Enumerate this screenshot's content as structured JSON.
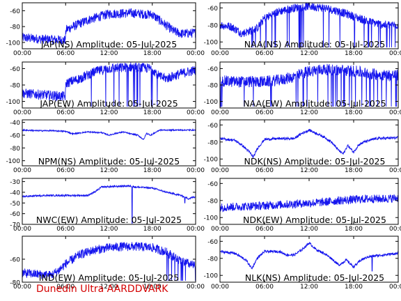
{
  "footer_text": "Dunedin Ultra AARDDVARK",
  "colors": {
    "trace": "#1515ee",
    "axis": "#000000",
    "footer": "#d40000"
  },
  "chart_data": [
    {
      "type": "line",
      "title": "JAP(NS) Amplitude: 05-Jul-2025",
      "xlim": [
        0,
        24
      ],
      "ylim": [
        -108,
        -50
      ],
      "yticks": [
        -100,
        -80,
        -60
      ],
      "xticks": [
        "00:00",
        "06:00",
        "12:00",
        "18:00",
        "00:00"
      ],
      "series": [
        {
          "x": [
            0,
            3,
            5.95,
            6.05,
            9,
            12,
            15,
            18,
            20,
            21,
            22,
            24
          ],
          "y": [
            -94,
            -96,
            -97,
            -84,
            -72,
            -64,
            -63,
            -65,
            -79,
            -86,
            -89,
            -88
          ],
          "noise": 6
        }
      ]
    },
    {
      "type": "line",
      "title": "NAA(NS) Amplitude: 05-Jul-2025",
      "xlim": [
        0,
        24
      ],
      "ylim": [
        -108,
        -54
      ],
      "yticks": [
        -100,
        -80,
        -60
      ],
      "xticks": [
        "00:00",
        "06:00",
        "12:00",
        "18:00",
        "00:00"
      ],
      "series": [
        {
          "x": [
            0,
            1.5,
            3,
            5,
            6,
            8,
            10,
            12,
            14,
            16,
            18,
            20,
            22,
            24
          ],
          "y": [
            -80,
            -82,
            -90,
            -84,
            -72,
            -64,
            -60,
            -58,
            -60,
            -64,
            -70,
            -76,
            -80,
            -80
          ],
          "noise": 5,
          "dropouts": [
            3,
            14.5,
            24
          ]
        }
      ]
    },
    {
      "type": "line",
      "title": "JAP(EW) Amplitude: 05-Jul-2025",
      "xlim": [
        0,
        24
      ],
      "ylim": [
        -108,
        -52
      ],
      "yticks": [
        -100,
        -80,
        -60
      ],
      "xticks": [
        "00:00",
        "06:00",
        "12:00",
        "18:00",
        "00:00"
      ],
      "series": [
        {
          "x": [
            0,
            3,
            5.95,
            6.05,
            8,
            10,
            12,
            15,
            18,
            19,
            20,
            22,
            24
          ],
          "y": [
            -90,
            -92,
            -94,
            -78,
            -72,
            -64,
            -60,
            -58,
            -60,
            -70,
            -72,
            -66,
            -62
          ],
          "noise": 6,
          "dropouts": [
            8,
            19
          ]
        }
      ]
    },
    {
      "type": "line",
      "title": "NAA(EW) Amplitude: 05-Jul-2025",
      "xlim": [
        0,
        24
      ],
      "ylim": [
        -108,
        -52
      ],
      "yticks": [
        -100,
        -80,
        -60
      ],
      "xticks": [
        "00:00",
        "06:00",
        "12:00",
        "18:00",
        "00:00"
      ],
      "series": [
        {
          "x": [
            0,
            2,
            4,
            6,
            8,
            10,
            12,
            14,
            16,
            18,
            20,
            22,
            24
          ],
          "y": [
            -75,
            -76,
            -76,
            -76,
            -74,
            -70,
            -63,
            -61,
            -62,
            -63,
            -66,
            -68,
            -68
          ],
          "noise": 7,
          "dropouts": [
            0,
            24
          ]
        }
      ]
    },
    {
      "type": "line",
      "title": "NPM(NS) Amplitude: 05-Jul-2025",
      "xlim": [
        0,
        24
      ],
      "ylim": [
        -108,
        -36
      ],
      "yticks": [
        -100,
        -80,
        -60,
        -40
      ],
      "xticks": [
        "00:00",
        "06:00",
        "12:00",
        "18:00",
        "00:00"
      ],
      "series": [
        {
          "x": [
            0,
            2,
            4,
            6,
            7,
            9,
            11,
            12,
            13,
            14,
            15,
            16,
            16.8,
            17.2,
            17.8,
            19,
            21,
            24
          ],
          "y": [
            -52,
            -53,
            -53,
            -54,
            -58,
            -55,
            -56,
            -60,
            -57,
            -55,
            -58,
            -60,
            -67,
            -57,
            -60,
            -52,
            -52,
            -52
          ],
          "noise": 1
        }
      ]
    },
    {
      "type": "line",
      "title": "NDK(NS) Amplitude: 05-Jul-2025",
      "xlim": [
        0,
        24
      ],
      "ylim": [
        -108,
        -54
      ],
      "yticks": [
        -100,
        -80,
        -60
      ],
      "xticks": [
        "00:00",
        "06:00",
        "12:00",
        "18:00",
        "00:00"
      ],
      "series": [
        {
          "x": [
            0,
            2,
            3,
            4,
            4.5,
            5,
            6,
            8,
            10,
            11,
            12,
            13,
            14,
            15,
            16,
            16.6,
            17.2,
            18,
            18.6,
            19.4,
            21,
            24
          ],
          "y": [
            -76,
            -78,
            -84,
            -92,
            -98,
            -88,
            -77,
            -76,
            -76,
            -70,
            -66,
            -70,
            -74,
            -80,
            -90,
            -94,
            -84,
            -92,
            -84,
            -80,
            -76,
            -75
          ],
          "noise": 1.5
        }
      ]
    },
    {
      "type": "line",
      "title": "NWC(EW) Amplitude: 05-Jul-2025",
      "xlim": [
        0,
        24
      ],
      "ylim": [
        -70,
        -27
      ],
      "yticks": [
        -70,
        -60,
        -50,
        -40,
        -30
      ],
      "xticks": [
        "00:00",
        "06:00",
        "12:00",
        "18:00",
        "00:00"
      ],
      "series": [
        {
          "x": [
            0,
            3,
            6,
            9,
            10,
            11,
            15,
            15.5,
            18,
            20,
            22,
            23,
            24
          ],
          "y": [
            -44,
            -43,
            -43,
            -43,
            -40,
            -35,
            -34,
            -35,
            -36,
            -40,
            -43,
            -46,
            -44
          ],
          "noise": 0.8,
          "spikes": [
            [
              15.2,
              -69
            ],
            [
              22.5,
              -50
            ]
          ]
        }
      ]
    },
    {
      "type": "line",
      "title": "NDK(EW) Amplitude: 05-Jul-2025",
      "xlim": [
        0,
        24
      ],
      "ylim": [
        -108,
        -54
      ],
      "yticks": [
        -100,
        -80,
        -60
      ],
      "xticks": [
        "00:00",
        "06:00",
        "12:00",
        "18:00",
        "00:00"
      ],
      "series": [
        {
          "x": [
            0,
            3,
            6,
            8,
            10,
            12,
            14,
            16,
            18,
            20,
            22,
            24
          ],
          "y": [
            -88,
            -87,
            -86,
            -85,
            -84,
            -83,
            -82,
            -80,
            -79,
            -78,
            -78,
            -77
          ],
          "noise": 5
        }
      ]
    },
    {
      "type": "line",
      "title": "IND(EW) Amplitude: 05-Jul-2025",
      "xlim": [
        0,
        24
      ],
      "ylim": [
        -80,
        -40
      ],
      "yticks": [
        -80,
        -60
      ],
      "xticks": [
        "00:00",
        "06:00",
        "12:00",
        "18:00",
        "00:00"
      ],
      "series": [
        {
          "x": [
            0,
            2,
            4,
            5,
            6,
            8,
            10,
            12,
            14,
            16,
            18,
            20,
            22,
            24
          ],
          "y": [
            -72,
            -73,
            -74,
            -70,
            -64,
            -56,
            -52,
            -50,
            -49,
            -49,
            -50,
            -54,
            -62,
            -66
          ],
          "noise": 4,
          "dropouts": [
            20,
            24
          ]
        }
      ]
    },
    {
      "type": "line",
      "title": "NLK(NS) Amplitude: 05-Jul-2025",
      "xlim": [
        0,
        24
      ],
      "ylim": [
        -108,
        -54
      ],
      "yticks": [
        -100,
        -80,
        -60
      ],
      "xticks": [
        "00:00",
        "06:00",
        "12:00",
        "18:00",
        "00:00"
      ],
      "series": [
        {
          "x": [
            0,
            2,
            3.5,
            4.3,
            5,
            6,
            8,
            9,
            10,
            11,
            12,
            13,
            14,
            15,
            16,
            17,
            18,
            19,
            20,
            22,
            24
          ],
          "y": [
            -72,
            -74,
            -82,
            -92,
            -80,
            -72,
            -72,
            -76,
            -76,
            -70,
            -62,
            -70,
            -74,
            -80,
            -88,
            -82,
            -90,
            -82,
            -78,
            -76,
            -74
          ],
          "noise": 1.5,
          "spikes": [
            [
              20.5,
              -95
            ]
          ]
        }
      ]
    }
  ]
}
